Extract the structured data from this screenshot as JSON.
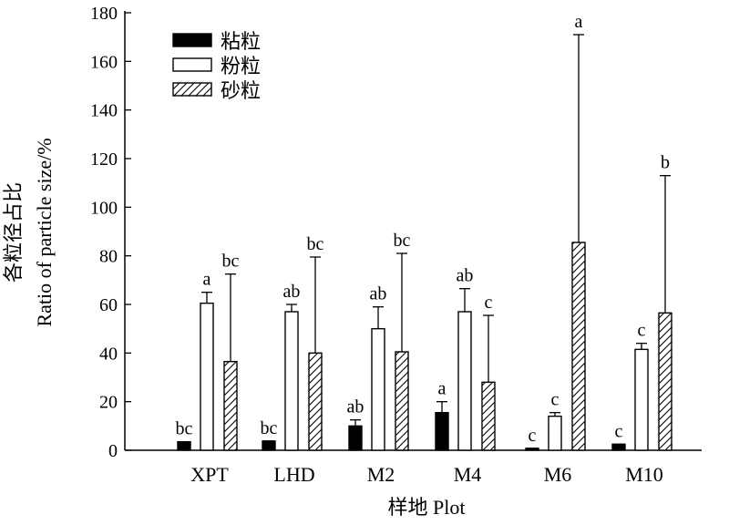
{
  "chart_data": {
    "type": "bar",
    "categories": [
      "XPT",
      "LHD",
      "M2",
      "M4",
      "M6",
      "M10"
    ],
    "series": [
      {
        "name": "粘粒",
        "pattern": "solid",
        "values": [
          3.5,
          3.8,
          10,
          15.5,
          0.8,
          2.5
        ],
        "err_upper": [
          3.5,
          3.8,
          12.5,
          20,
          0.8,
          2.5
        ],
        "letters": [
          "bc",
          "bc",
          "ab",
          "a",
          "c",
          "c"
        ]
      },
      {
        "name": "粉粒",
        "pattern": "hollow",
        "values": [
          60.5,
          57,
          50,
          57,
          14,
          41.5
        ],
        "err_upper": [
          65,
          60,
          59,
          66.5,
          15.5,
          44
        ],
        "letters": [
          "a",
          "ab",
          "ab",
          "ab",
          "c",
          "c"
        ]
      },
      {
        "name": "砂粒",
        "pattern": "hatched",
        "values": [
          36.5,
          40,
          40.5,
          28,
          85.5,
          56.5
        ],
        "err_upper": [
          72.5,
          79.5,
          81,
          55.5,
          171,
          113
        ],
        "letters": [
          "bc",
          "bc",
          "bc",
          "c",
          "a",
          "b"
        ]
      }
    ],
    "ylim": [
      0,
      180
    ],
    "yticks": [
      0,
      20,
      40,
      60,
      80,
      100,
      120,
      140,
      160,
      180
    ],
    "ylabel_cn": "各粒径占比",
    "ylabel_en": "Ratio of particle size/%",
    "xlabel": "样地 Plot",
    "legend_position": "top-left",
    "grid": false
  }
}
